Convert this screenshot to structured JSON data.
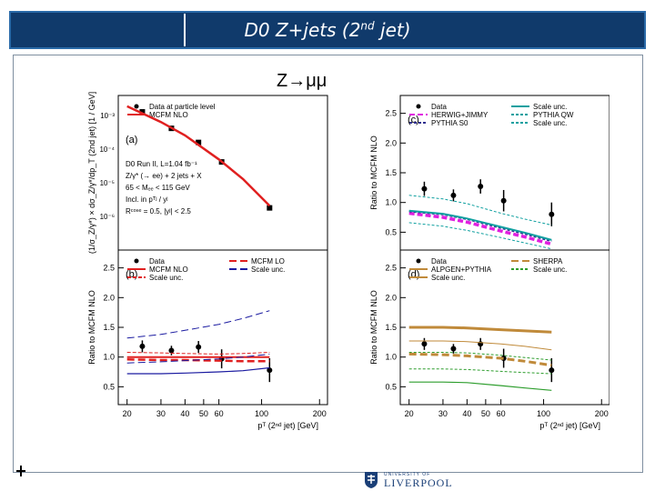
{
  "slide": {
    "title": "D0 Z+jets (2",
    "title_sup": "nd",
    "title_end": " jet)",
    "channel": "Z→μμ"
  },
  "logo": {
    "small": "UNIVERSITY OF",
    "big": "LIVERPOOL",
    "color": "#1a3f77"
  },
  "chart_data": [
    {
      "panel": "a",
      "type": "line",
      "title": "(a)",
      "annotations": [
        "D0 Run II, L=1.04 fb⁻¹",
        "Z/γ* (→ ee) + 2 jets + X",
        "65 < Mₑₑ < 115 GeV",
        "Incl. in pᵀʲ / yʲ",
        "Rᶜᵒⁿᵉ = 0.5, |yʲ| < 2.5"
      ],
      "ylabel": "(1/σ_Z/γ*) × dσ_Z/γ*/dp_T (2nd jet) [1 / GeV]",
      "yscale": "log",
      "ylim": [
        1e-07,
        0.004
      ],
      "y_ticks": [
        "10⁻³",
        "10⁻⁴",
        "10⁻⁵",
        "10⁻⁶"
      ],
      "xscale": "log",
      "xlim": [
        18,
        220
      ],
      "legend": [
        "Data at particle level",
        "MCFM NLO"
      ],
      "series": [
        {
          "name": "Data at particle level",
          "x": [
            24,
            34,
            47,
            62,
            110
          ],
          "y": [
            0.0013,
            0.00042,
            0.00016,
            4.2e-05,
            1.8e-06
          ]
        },
        {
          "name": "MCFM NLO",
          "x": [
            20,
            30,
            40,
            60,
            80,
            110
          ],
          "y": [
            0.0019,
            0.00065,
            0.00026,
            5e-05,
            1.3e-05,
            2.1e-06
          ],
          "color": "#e02020"
        }
      ]
    },
    {
      "panel": "c",
      "type": "line",
      "title": "(c)",
      "ylabel": "Ratio to MCFM NLO",
      "ylim": [
        0.2,
        2.8
      ],
      "yticks": [
        0.5,
        1.0,
        1.5,
        2.0,
        2.5
      ],
      "xscale": "log",
      "xlim": [
        18,
        220
      ],
      "legend": [
        "Data",
        "HERWIG+JIMMY",
        "PYTHIA S0",
        "Scale unc.",
        "PYTHIA QW",
        "Scale unc."
      ],
      "series": [
        {
          "name": "Data",
          "x": [
            24,
            34,
            47,
            62,
            110
          ],
          "y": [
            1.23,
            1.12,
            1.27,
            1.03,
            0.8
          ],
          "err": [
            0.12,
            0.1,
            0.12,
            0.18,
            0.2
          ]
        },
        {
          "name": "HERWIG+JIMMY",
          "x": [
            20,
            30,
            40,
            60,
            80,
            110
          ],
          "y": [
            0.82,
            0.75,
            0.67,
            0.52,
            0.42,
            0.3
          ],
          "color": "#e020e0"
        },
        {
          "name": "PYTHIA S0",
          "x": [
            20,
            30,
            40,
            60,
            80,
            110
          ],
          "y": [
            0.85,
            0.8,
            0.72,
            0.57,
            0.47,
            0.35
          ],
          "color": "#303090"
        },
        {
          "name": "PYTHIA QW",
          "x": [
            20,
            30,
            40,
            60,
            80,
            110
          ],
          "y": [
            0.86,
            0.81,
            0.73,
            0.59,
            0.49,
            0.37
          ],
          "color": "#10a0a0"
        },
        {
          "name": "Scale unc.",
          "x": [
            20,
            30,
            40,
            60,
            80,
            110
          ],
          "y": [
            1.12,
            1.06,
            0.98,
            0.82,
            0.72,
            0.62
          ],
          "color": "#10a0a0"
        },
        {
          "name": "Scale unc.",
          "x": [
            20,
            30,
            40,
            60,
            80,
            110
          ],
          "y": [
            0.66,
            0.6,
            0.53,
            0.41,
            0.32,
            0.22
          ],
          "color": "#10a0a0"
        }
      ]
    },
    {
      "panel": "b",
      "type": "line",
      "title": "(b)",
      "ylabel": "Ratio to MCFM NLO",
      "ylim": [
        0.2,
        2.8
      ],
      "yticks": [
        0.5,
        1.0,
        1.5,
        2.0,
        2.5
      ],
      "xlabel": "pᵀ (2ⁿᵈ jet) [GeV]",
      "xscale": "log",
      "xlim": [
        18,
        220
      ],
      "xticks": [
        20,
        30,
        40,
        50,
        60,
        100,
        200
      ],
      "legend": [
        "Data",
        "MCFM NLO",
        "Scale unc.",
        "MCFM LO",
        "Scale unc."
      ],
      "series": [
        {
          "name": "Data",
          "x": [
            24,
            34,
            47,
            62,
            110
          ],
          "y": [
            1.18,
            1.11,
            1.17,
            0.97,
            0.78
          ],
          "err": [
            0.1,
            0.08,
            0.1,
            0.16,
            0.2
          ]
        },
        {
          "name": "MCFM NLO",
          "x": [
            20,
            30,
            40,
            60,
            80,
            110
          ],
          "y": [
            1.0,
            1.0,
            1.0,
            1.0,
            1.0,
            1.0
          ],
          "color": "#e02020"
        },
        {
          "name": "Scale unc.",
          "x": [
            20,
            30,
            40,
            60,
            80,
            110
          ],
          "y": [
            1.08,
            1.07,
            1.06,
            1.05,
            1.06,
            1.08
          ],
          "color": "#e02020"
        },
        {
          "name": "Scale unc.",
          "x": [
            20,
            30,
            40,
            60,
            80,
            110
          ],
          "y": [
            0.96,
            0.95,
            0.95,
            0.94,
            0.93,
            0.93
          ],
          "color": "#e02020"
        },
        {
          "name": "MCFM LO",
          "x": [
            20,
            30,
            40,
            60,
            80,
            110
          ],
          "y": [
            0.9,
            0.92,
            0.94,
            0.97,
            1.0,
            1.05
          ],
          "color": "#1a1aa0"
        },
        {
          "name": "Scale unc.",
          "x": [
            20,
            30,
            40,
            60,
            80,
            110
          ],
          "y": [
            1.32,
            1.38,
            1.45,
            1.55,
            1.65,
            1.78
          ],
          "color": "#1a1aa0"
        },
        {
          "name": "Scale unc.",
          "x": [
            20,
            30,
            40,
            60,
            80,
            110
          ],
          "y": [
            0.72,
            0.72,
            0.73,
            0.75,
            0.77,
            0.82
          ],
          "color": "#1a1aa0"
        }
      ]
    },
    {
      "panel": "d",
      "type": "line",
      "title": "(d)",
      "ylabel": "Ratio to MCFM NLO",
      "ylim": [
        0.2,
        2.8
      ],
      "yticks": [
        0.5,
        1.0,
        1.5,
        2.0,
        2.5
      ],
      "xlabel": "pᵀ (2ⁿᵈ jet) [GeV]",
      "xscale": "log",
      "xlim": [
        18,
        220
      ],
      "xticks": [
        20,
        30,
        40,
        50,
        60,
        100,
        200
      ],
      "legend": [
        "Data",
        "ALPGEN+PYTHIA",
        "Scale unc.",
        "SHERPA",
        "Scale unc."
      ],
      "series": [
        {
          "name": "Data",
          "x": [
            24,
            34,
            47,
            62,
            110
          ],
          "y": [
            1.22,
            1.14,
            1.22,
            0.98,
            0.78
          ],
          "err": [
            0.1,
            0.08,
            0.1,
            0.16,
            0.2
          ]
        },
        {
          "name": "SHERPA",
          "x": [
            20,
            30,
            40,
            60,
            80,
            110
          ],
          "y": [
            1.5,
            1.5,
            1.49,
            1.46,
            1.44,
            1.42
          ],
          "color": "#c08a3a"
        },
        {
          "name": "Scale unc.",
          "x": [
            20,
            30,
            40,
            60,
            80,
            110
          ],
          "y": [
            1.27,
            1.27,
            1.26,
            1.22,
            1.18,
            1.12
          ],
          "color": "#c08a3a"
        },
        {
          "name": "Scale unc.",
          "x": [
            20,
            30,
            40,
            60,
            80,
            110
          ],
          "y": [
            1.05,
            1.04,
            1.02,
            0.98,
            0.93,
            0.86
          ],
          "color": "#c08a3a"
        },
        {
          "name": "ALPGEN+PYTHIA",
          "x": [
            20,
            30,
            40,
            60,
            80,
            110
          ],
          "y": [
            0.8,
            0.8,
            0.79,
            0.76,
            0.74,
            0.72
          ],
          "color": "#2e9e2e"
        },
        {
          "name": "Scale unc.",
          "x": [
            20,
            30,
            40,
            60,
            80,
            110
          ],
          "y": [
            1.08,
            1.08,
            1.07,
            1.03,
            0.99,
            0.95
          ],
          "color": "#2e9e2e"
        },
        {
          "name": "Scale unc.",
          "x": [
            20,
            30,
            40,
            60,
            80,
            110
          ],
          "y": [
            0.58,
            0.58,
            0.57,
            0.52,
            0.48,
            0.44
          ],
          "color": "#2e9e2e"
        }
      ]
    }
  ]
}
